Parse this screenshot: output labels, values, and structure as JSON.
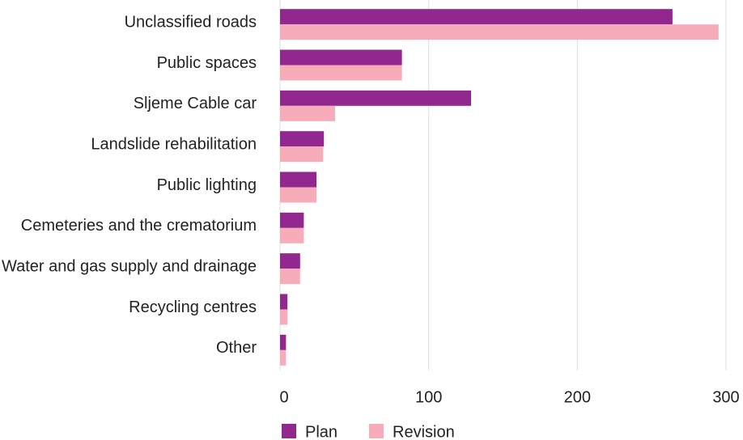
{
  "chart_data": {
    "type": "barh",
    "categories": [
      "Unclassified roads",
      "Public spaces",
      "Sljeme Cable car",
      "Landslide rehabilitation",
      "Public lighting",
      "Cemeteries and the crematorium",
      "Water and gas supply and drainage",
      "Recycling centres",
      "Other"
    ],
    "series": [
      {
        "name": "Plan",
        "color": "#92278f",
        "values": [
          264,
          82,
          128.5,
          29.5,
          24.5,
          16,
          13.5,
          5,
          4
        ]
      },
      {
        "name": "Revision",
        "color": "#f7adb9",
        "values": [
          295,
          82,
          37,
          29,
          24.5,
          16,
          13.5,
          5,
          4
        ]
      }
    ],
    "xlim": [
      0,
      300
    ],
    "xticks": [
      0,
      100,
      200,
      300
    ],
    "grid": true
  }
}
